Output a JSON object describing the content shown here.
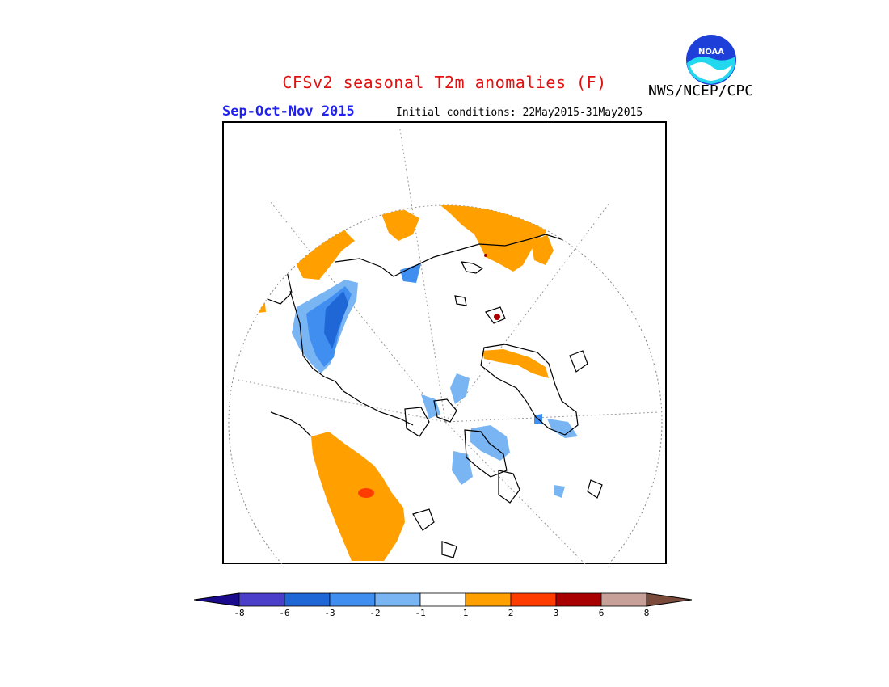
{
  "title": "CFSv2 seasonal T2m anomalies (F)",
  "season": "Sep-Oct-Nov 2015",
  "initial_conditions": "Initial conditions: 22May2015-31May2015",
  "agency": "NWS/NCEP/CPC",
  "logo_text": "NOAA",
  "colors": {
    "title": "#e01010",
    "season": "#2222ee",
    "frame": "#000000",
    "coast": "#000000",
    "grid": "#888888"
  },
  "legend": {
    "tick_labels": [
      "-8",
      "-6",
      "-3",
      "-2",
      "-1",
      "1",
      "2",
      "3",
      "6",
      "8"
    ],
    "colors": [
      "#1a0a8c",
      "#4b3fc9",
      "#1f66d6",
      "#3f8ef0",
      "#79b4f3",
      "#ffffff",
      "#ffa000",
      "#ff3c00",
      "#a80000",
      "#c8a09a",
      "#7a4a3a"
    ]
  },
  "map": {
    "projection": "north-polar-stereographic",
    "anomaly_regions": [
      {
        "name": "warm-western-north-america",
        "category": "1 to 2"
      },
      {
        "name": "warm-europe-western-russia",
        "category": "1 to 2"
      },
      {
        "name": "warm-east-asia",
        "category": "1 to 2"
      },
      {
        "name": "warm-north-africa-middle-east",
        "category": "1 to 2"
      },
      {
        "name": "warm-siberia-arctic-coast",
        "category": "1 to 2"
      },
      {
        "name": "cold-central-asia",
        "category": "-1 to -3"
      },
      {
        "name": "cold-canada-hudson",
        "category": "-1 to -2"
      },
      {
        "name": "hot-spot-western-us",
        "category": "2 to 3"
      }
    ]
  }
}
